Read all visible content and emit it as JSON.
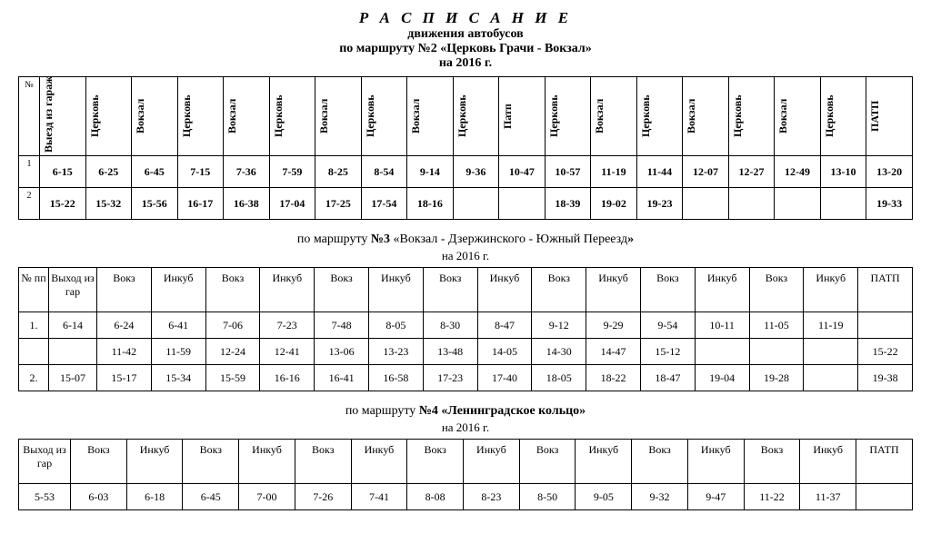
{
  "header": {
    "main": "Р А С П И С А Н И Е",
    "sub1": "движения автобусов",
    "sub2_pre": "по маршруту ",
    "sub2_route": "№2 «Церковь Грачи - Вокзал»",
    "sub3": "на 2016 г."
  },
  "table1": {
    "num_header": "№",
    "cols": [
      "Выезд из гаража",
      "Церковь",
      "Вокзал",
      "Церковь",
      "Вокзал",
      "Церковь",
      "Вокзал",
      "Церковь",
      "Вокзал",
      "Церковь",
      "Патп",
      "Церковь",
      "Вокзал",
      "Церковь",
      "Вокзал",
      "Церковь",
      "Вокзал",
      "Церковь",
      "ПАТП"
    ],
    "rows": [
      {
        "n": "1",
        "cells": [
          "6-15",
          "6-25",
          "6-45",
          "7-15",
          "7-36",
          "7-59",
          "8-25",
          "8-54",
          "9-14",
          "9-36",
          "10-47",
          "10-57",
          "11-19",
          "11-44",
          "12-07",
          "12-27",
          "12-49",
          "13-10",
          "13-20"
        ]
      },
      {
        "n": "2",
        "cells": [
          "15-22",
          "15-32",
          "15-56",
          "16-17",
          "16-38",
          "17-04",
          "17-25",
          "17-54",
          "18-16",
          "",
          "",
          "18-39",
          "19-02",
          "19-23",
          "",
          "",
          "",
          "",
          "19-33"
        ]
      }
    ]
  },
  "section2": {
    "pre": "по маршруту ",
    "route_num": "№3",
    "route_name": " «Вокзал - Дзержинского   -   Южный Переезд",
    "route_close": "»",
    "year": "на 2016 г."
  },
  "table2": {
    "num_header": "№ пп",
    "cols": [
      "Выход из гар",
      "Вокз",
      "Инкуб",
      "Вокз",
      "Инкуб",
      "Вокз",
      "Инкуб",
      "Вокз",
      "Инкуб",
      "Вокз",
      "Инкуб",
      "Вокз",
      "Инкуб",
      "Вокз",
      "Инкуб",
      "ПАТП"
    ],
    "rows": [
      {
        "n": "1.",
        "cells": [
          "6-14",
          "6-24",
          "6-41",
          "7-06",
          "7-23",
          "7-48",
          "8-05",
          "8-30",
          "8-47",
          "9-12",
          "9-29",
          "9-54",
          "10-11",
          "11-05",
          "11-19",
          ""
        ]
      },
      {
        "n": "",
        "cells": [
          "",
          "11-42",
          "11-59",
          "12-24",
          "12-41",
          "13-06",
          "13-23",
          "13-48",
          "14-05",
          "14-30",
          "14-47",
          "15-12",
          "",
          "",
          "",
          "15-22"
        ]
      },
      {
        "n": "2.",
        "cells": [
          "15-07",
          "15-17",
          "15-34",
          "15-59",
          "16-16",
          "16-41",
          "16-58",
          "17-23",
          "17-40",
          "18-05",
          "18-22",
          "18-47",
          "19-04",
          "19-28",
          "",
          "19-38"
        ]
      }
    ]
  },
  "section3": {
    "pre": "по маршруту ",
    "route": "№4 «Ленинградское кольцо»",
    "year": "на 2016 г."
  },
  "table3": {
    "cols": [
      "Выход из гар",
      "Вокз",
      "Инкуб",
      "Вокз",
      "Инкуб",
      "Вокз",
      "Инкуб",
      "Вокз",
      "Инкуб",
      "Вокз",
      "Инкуб",
      "Вокз",
      "Инкуб",
      "Вокз",
      "Инкуб",
      "ПАТП"
    ],
    "rows": [
      {
        "cells": [
          "5-53",
          "6-03",
          "6-18",
          "6-45",
          "7-00",
          "7-26",
          "7-41",
          "8-08",
          "8-23",
          "8-50",
          "9-05",
          "9-32",
          "9-47",
          "11-22",
          "11-37",
          ""
        ]
      }
    ]
  }
}
